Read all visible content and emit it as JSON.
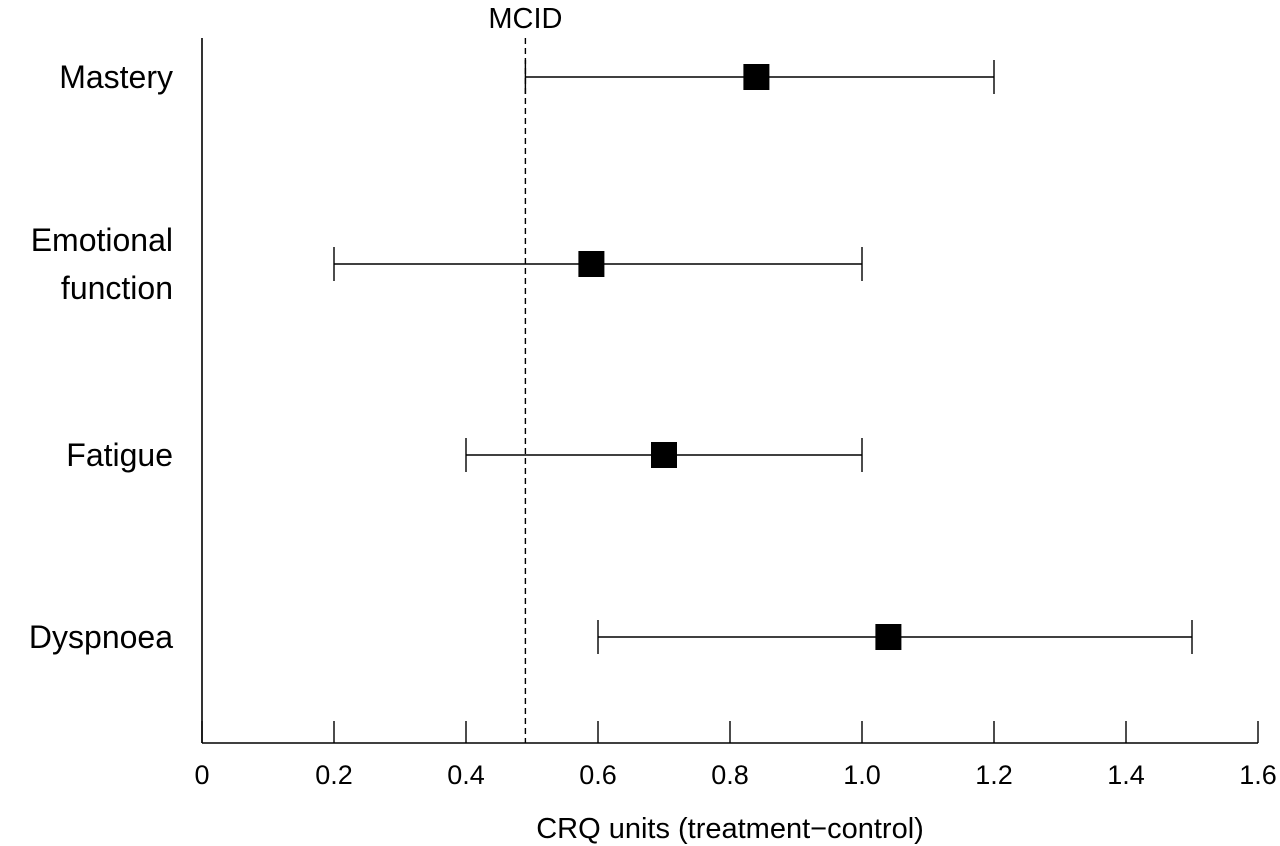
{
  "chart_data": {
    "type": "forest",
    "xlabel": "CRQ units (treatment−control)",
    "xlim": [
      0,
      1.6
    ],
    "xticks": [
      "0",
      "0.2",
      "0.4",
      "0.6",
      "0.8",
      "1.0",
      "1.2",
      "1.4",
      "1.6"
    ],
    "reference_line": {
      "label": "MCID",
      "value": 0.49,
      "style": "dashed"
    },
    "items": [
      {
        "label": [
          "Mastery"
        ],
        "estimate": 0.84,
        "lower": 0.49,
        "upper": 1.2
      },
      {
        "label": [
          "Emotional",
          "function"
        ],
        "estimate": 0.59,
        "lower": 0.2,
        "upper": 1.0
      },
      {
        "label": [
          "Fatigue"
        ],
        "estimate": 0.7,
        "lower": 0.4,
        "upper": 1.0
      },
      {
        "label": [
          "Dyspnoea"
        ],
        "estimate": 1.04,
        "lower": 0.6,
        "upper": 1.5
      }
    ],
    "grid": false
  }
}
